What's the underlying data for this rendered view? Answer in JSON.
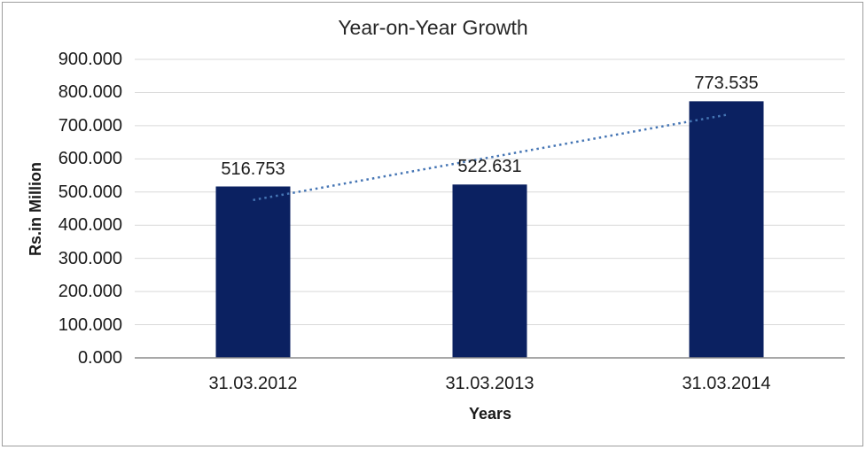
{
  "window": {
    "background_color": "#ffffff",
    "frame_border_color": "#9d9d9d"
  },
  "chart_data": {
    "type": "bar",
    "title": "Year-on-Year Growth",
    "xlabel": "Years",
    "ylabel": "Rs.in Million",
    "categories": [
      "31.03.2012",
      "31.03.2013",
      "31.03.2014"
    ],
    "series": [
      {
        "name": "Year-on-Year Growth",
        "values": [
          516.753,
          522.631,
          773.535
        ]
      }
    ],
    "data_labels": [
      "516.753",
      "522.631",
      "773.535"
    ],
    "y_ticks": [
      "0.000",
      "100.000",
      "200.000",
      "300.000",
      "400.000",
      "500.000",
      "600.000",
      "700.000",
      "800.000",
      "900.000"
    ],
    "ylim": [
      0,
      900
    ],
    "grid": true,
    "legend": "none",
    "bar_color": "#0b2161",
    "gridline_color": "#d9d9d9",
    "axis_line_color": "#8c8c8c",
    "trendline": {
      "type": "linear",
      "style": "dotted",
      "color": "#4575b4"
    }
  }
}
